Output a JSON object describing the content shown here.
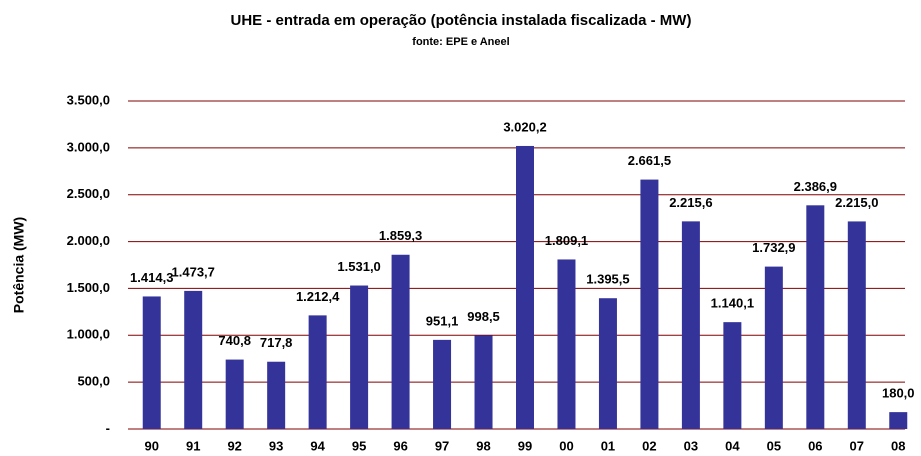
{
  "chart_data": {
    "type": "bar",
    "title": "UHE - entrada em operação (potência instalada fiscalizada - MW)",
    "subtitle": "fonte: EPE e Aneel",
    "y_label": "Potência (MW)",
    "categories": [
      "90",
      "91",
      "92",
      "93",
      "94",
      "95",
      "96",
      "97",
      "98",
      "99",
      "00",
      "01",
      "02",
      "03",
      "04",
      "05",
      "06",
      "07",
      "08"
    ],
    "values": [
      1414.3,
      1473.7,
      740.8,
      717.8,
      1212.4,
      1531.0,
      1859.3,
      951.1,
      998.5,
      3020.2,
      1809.1,
      1395.5,
      2661.5,
      2215.6,
      1140.1,
      1732.9,
      2386.9,
      2215.0,
      180.0
    ],
    "value_labels": [
      "1.414,3",
      "1.473,7",
      "740,8",
      "717,8",
      "1.212,4",
      "1.531,0",
      "1.859,3",
      "951,1",
      "998,5",
      "3.020,2",
      "1.809,1",
      "1.395,5",
      "2.661,5",
      "2.215,6",
      "1.140,1",
      "1.732,9",
      "2.386,9",
      "2.215,0",
      "180,0"
    ],
    "color": "#333399",
    "grid_color": "#800000",
    "ylim": [
      0,
      3500
    ],
    "yticks": [
      {
        "value": 0,
        "label": "-"
      },
      {
        "value": 500,
        "label": "500,0"
      },
      {
        "value": 1000,
        "label": "1.000,0"
      },
      {
        "value": 1500,
        "label": "1.500,0"
      },
      {
        "value": 2000,
        "label": "2.000,0"
      },
      {
        "value": 2500,
        "label": "2.500,0"
      },
      {
        "value": 3000,
        "label": "3.000,0"
      },
      {
        "value": 3500,
        "label": "3.500,0"
      }
    ],
    "grid": true
  }
}
